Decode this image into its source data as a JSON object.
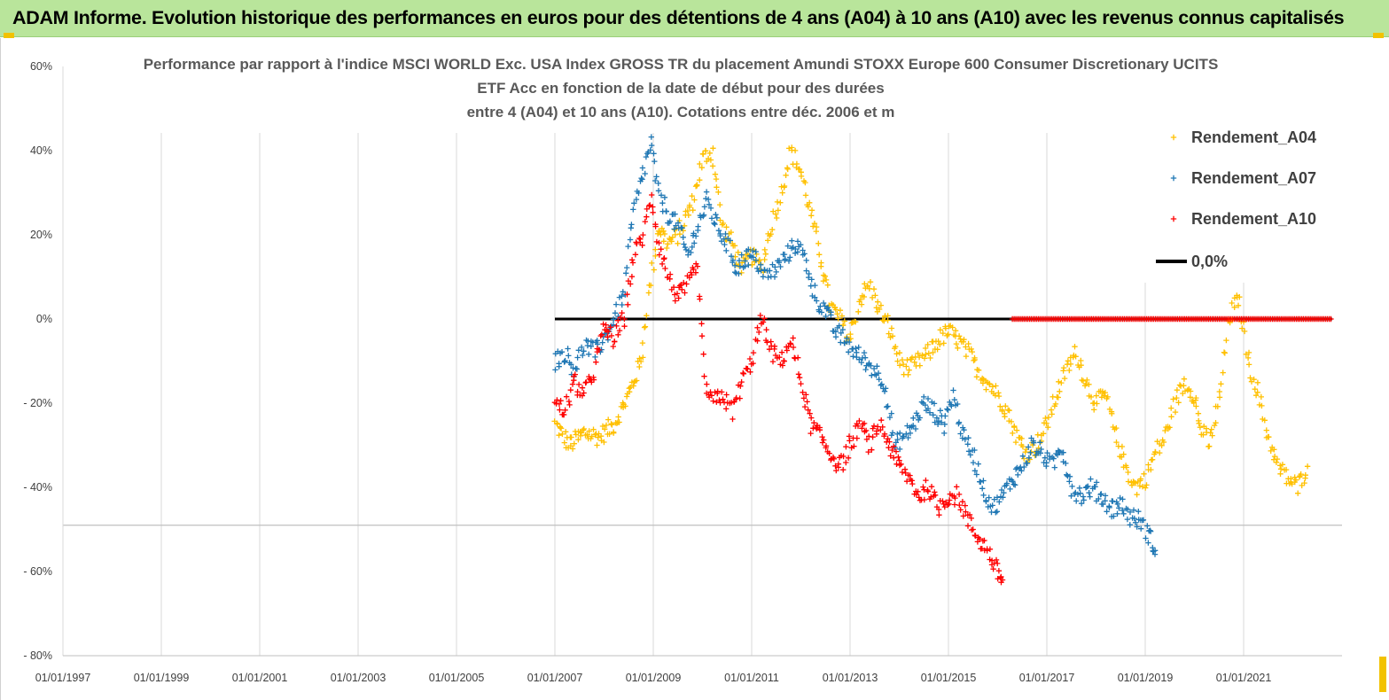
{
  "banner": {
    "text": "ADAM Informe. Evolution historique des performances en euros pour des détentions de 4 ans (A04) à 10 ans (A10) avec les revenus connus capitalisés"
  },
  "colors": {
    "banner_bg": "#b9e59b",
    "a04": "#ffc000",
    "a07": "#1f77b4",
    "a10": "#ff0000",
    "zero": "#000000",
    "grid": "#d9d9d9"
  },
  "chart_data": {
    "type": "scatter",
    "title_lines": [
      "Performance par rapport à l'indice MSCI WORLD Exc. USA Index GROSS TR  du placement Amundi STOXX Europe 600 Consumer Discretionary UCITS",
      "ETF Acc en fonction de la date de début pour des durées",
      "entre 4 (A04) et 10 ans (A10).  Cotations entre déc. 2006 et m"
    ],
    "x_unit": "year",
    "xlim": [
      1997.0,
      2023.0
    ],
    "ylim": [
      -80,
      60
    ],
    "y_ticks": [
      {
        "value": 60,
        "label": "60%"
      },
      {
        "value": 40,
        "label": "40%"
      },
      {
        "value": 20,
        "label": "20%"
      },
      {
        "value": 0,
        "label": "0%"
      },
      {
        "value": -20,
        "label": "- 20%"
      },
      {
        "value": -40,
        "label": "- 40%"
      },
      {
        "value": -60,
        "label": "- 60%"
      },
      {
        "value": -80,
        "label": "- 80%"
      }
    ],
    "x_ticks": [
      {
        "value": 1997,
        "label": "01/01/1997"
      },
      {
        "value": 1999,
        "label": "01/01/1999"
      },
      {
        "value": 2001,
        "label": "01/01/2001"
      },
      {
        "value": 2003,
        "label": "01/01/2003"
      },
      {
        "value": 2005,
        "label": "01/01/2005"
      },
      {
        "value": 2007,
        "label": "01/01/2007"
      },
      {
        "value": 2009,
        "label": "01/01/2009"
      },
      {
        "value": 2011,
        "label": "01/01/2011"
      },
      {
        "value": 2013,
        "label": "01/01/2013"
      },
      {
        "value": 2015,
        "label": "01/01/2015"
      },
      {
        "value": 2017,
        "label": "01/01/2017"
      },
      {
        "value": 2019,
        "label": "01/01/2019"
      },
      {
        "value": 2021,
        "label": "01/01/2021"
      }
    ],
    "series": [
      {
        "name": "Rendement_A04",
        "color": "#ffc000",
        "marker": "+",
        "x": [
          2007.0,
          2007.3,
          2007.6,
          2007.9,
          2008.2,
          2008.5,
          2008.75,
          2008.9,
          2009.1,
          2009.3,
          2009.5,
          2009.8,
          2010.0,
          2010.2,
          2010.4,
          2010.6,
          2010.8,
          2011.0,
          2011.2,
          2011.4,
          2011.6,
          2011.8,
          2012.0,
          2012.2,
          2012.4,
          2012.6,
          2012.8,
          2013.0,
          2013.2,
          2013.4,
          2013.6,
          2013.8,
          2014.0,
          2014.2,
          2014.4,
          2014.6,
          2014.8,
          2015.0,
          2015.2,
          2015.4,
          2015.6,
          2015.8,
          2016.0,
          2016.2,
          2016.4,
          2016.6,
          2016.8,
          2017.0,
          2017.2,
          2017.4,
          2017.6,
          2017.8,
          2018.0,
          2018.2,
          2018.4,
          2018.6,
          2018.8,
          2019.0,
          2019.2,
          2019.4,
          2019.6,
          2019.8,
          2020.0,
          2020.1,
          2020.3,
          2020.5,
          2020.7,
          2020.9,
          2021.1,
          2021.3,
          2021.5,
          2021.7,
          2021.9,
          2022.1,
          2022.3
        ],
        "y": [
          -25,
          -30,
          -27,
          -28,
          -25,
          -18,
          -10,
          5,
          22,
          18,
          20,
          28,
          38,
          40,
          22,
          18,
          12,
          15,
          12,
          22,
          30,
          40,
          35,
          25,
          15,
          3,
          0,
          -5,
          5,
          8,
          2,
          -2,
          -10,
          -12,
          -10,
          -8,
          -5,
          -3,
          -5,
          -8,
          -12,
          -15,
          -18,
          -22,
          -28,
          -32,
          -30,
          -25,
          -18,
          -12,
          -8,
          -15,
          -20,
          -18,
          -28,
          -35,
          -40,
          -38,
          -32,
          -28,
          -20,
          -15,
          -18,
          -25,
          -30,
          -20,
          0,
          5,
          -10,
          -18,
          -28,
          -35,
          -38,
          -40,
          -35
        ]
      },
      {
        "name": "Rendement_A07",
        "color": "#1f77b4",
        "marker": "+",
        "x": [
          2007.0,
          2007.2,
          2007.4,
          2007.6,
          2007.8,
          2008.0,
          2008.2,
          2008.4,
          2008.6,
          2008.8,
          2008.95,
          2009.1,
          2009.3,
          2009.5,
          2009.7,
          2009.9,
          2010.1,
          2010.3,
          2010.5,
          2010.7,
          2010.9,
          2011.1,
          2011.3,
          2011.5,
          2011.7,
          2011.9,
          2012.1,
          2012.3,
          2012.5,
          2012.7,
          2012.9,
          2013.1,
          2013.3,
          2013.5,
          2013.7,
          2013.9,
          2014.1,
          2014.3,
          2014.5,
          2014.7,
          2014.9,
          2015.1,
          2015.3,
          2015.5,
          2015.7,
          2015.9,
          2016.1,
          2016.3,
          2016.5,
          2016.7,
          2016.9,
          2017.1,
          2017.3,
          2017.5,
          2017.7,
          2017.9,
          2018.1,
          2018.3,
          2018.5,
          2018.7,
          2018.9,
          2019.1,
          2019.2
        ],
        "y": [
          -10,
          -8,
          -12,
          -6,
          -8,
          -5,
          0,
          5,
          25,
          35,
          42,
          30,
          25,
          22,
          15,
          22,
          28,
          22,
          18,
          12,
          15,
          14,
          10,
          12,
          15,
          18,
          14,
          5,
          2,
          -3,
          -5,
          -8,
          -10,
          -12,
          -15,
          -30,
          -28,
          -25,
          -20,
          -22,
          -25,
          -18,
          -28,
          -32,
          -40,
          -45,
          -42,
          -38,
          -35,
          -30,
          -32,
          -35,
          -30,
          -40,
          -42,
          -40,
          -42,
          -45,
          -44,
          -47,
          -48,
          -52,
          -55
        ]
      },
      {
        "name": "Rendement_A10",
        "color": "#ff0000",
        "marker": "+",
        "x": [
          2007.0,
          2007.2,
          2007.4,
          2007.6,
          2007.8,
          2008.0,
          2008.2,
          2008.4,
          2008.6,
          2008.8,
          2008.95,
          2009.1,
          2009.3,
          2009.5,
          2009.7,
          2009.9,
          2010.05,
          2010.2,
          2010.4,
          2010.6,
          2010.8,
          2011.0,
          2011.2,
          2011.4,
          2011.6,
          2011.8,
          2012.0,
          2012.2,
          2012.4,
          2012.6,
          2012.8,
          2013.0,
          2013.2,
          2013.4,
          2013.6,
          2013.8,
          2014.0,
          2014.2,
          2014.4,
          2014.6,
          2014.8,
          2015.0,
          2015.2,
          2015.4,
          2015.6,
          2015.8,
          2016.0,
          2016.1
        ],
        "y": [
          -20,
          -22,
          -15,
          -18,
          -12,
          -2,
          -5,
          0,
          15,
          20,
          30,
          18,
          10,
          5,
          8,
          12,
          -15,
          -20,
          -18,
          -22,
          -15,
          -10,
          0,
          -8,
          -10,
          -5,
          -15,
          -25,
          -28,
          -32,
          -35,
          -30,
          -25,
          -30,
          -25,
          -30,
          -35,
          -38,
          -42,
          -40,
          -45,
          -42,
          -42,
          -48,
          -52,
          -55,
          -60,
          -62
        ]
      },
      {
        "name": "0,0%",
        "color": "#000000",
        "type": "line",
        "x": [
          2007.0,
          2022.8
        ],
        "y": [
          0,
          0
        ]
      }
    ],
    "a10_flat_zero": {
      "x_start": 2016.3,
      "x_end": 2022.8,
      "y": 0
    },
    "legend": [
      "Rendement_A04",
      "Rendement_A07",
      "Rendement_A10",
      "0,0%"
    ],
    "legend_position": "top-right"
  }
}
